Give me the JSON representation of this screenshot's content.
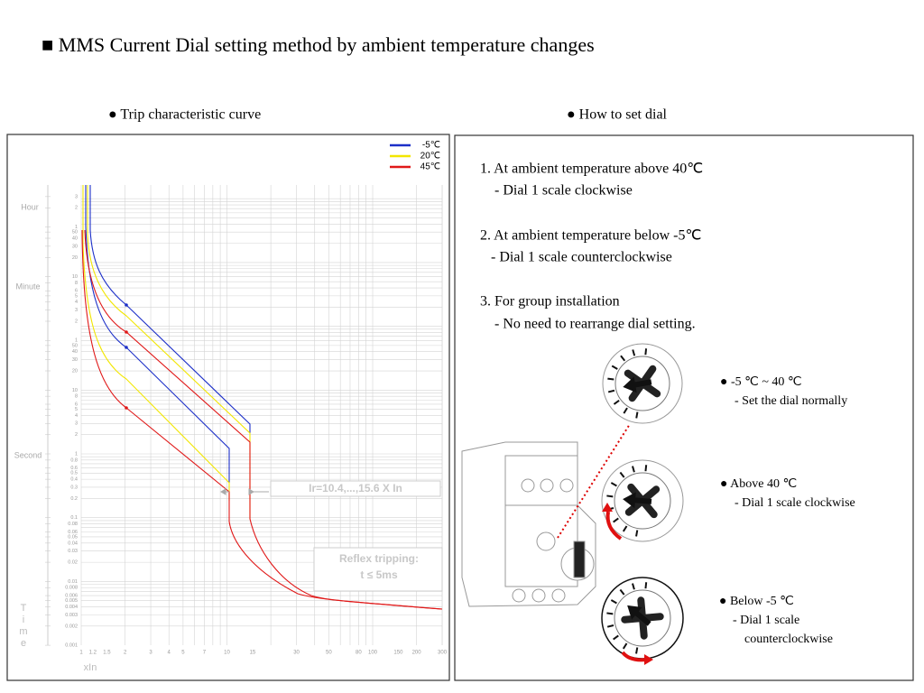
{
  "title": "■ MMS Current Dial setting method by ambient temperature changes",
  "left_panel": {
    "heading": "● Trip characteristic curve",
    "legend": [
      "-5℃",
      "20℃",
      "45℃"
    ],
    "axis_groups": [
      "Hour",
      "Minute",
      "Second"
    ],
    "y_axis_label": "Time",
    "x_axis_label": "xIn",
    "x_ticks": [
      "1",
      "1.2",
      "1.5",
      "2",
      "3",
      "4",
      "5",
      "7",
      "10",
      "15",
      "30",
      "50",
      "80",
      "100",
      "150",
      "200",
      "300"
    ],
    "y_ticks_seconds": [
      "0.001",
      "0.002",
      "0.003",
      "0.004",
      "0.005",
      "0.006",
      "0.008",
      "0.01",
      "0.02",
      "0.03",
      "0.04",
      "0.05",
      "0.06",
      "0.08",
      "0.1",
      "0.2",
      "0.3",
      "0.4",
      "0.5",
      "0.6",
      "0.8",
      "1",
      "2",
      "3",
      "4",
      "5",
      "6",
      "8",
      "10",
      "20",
      "30",
      "40",
      "50"
    ],
    "y_ticks_minutes": [
      "1",
      "2",
      "3",
      "4",
      "5",
      "6",
      "8",
      "10",
      "20",
      "30",
      "40",
      "50"
    ],
    "y_ticks_hours": [
      "1",
      "2",
      "3"
    ],
    "annotations": {
      "setting_range": "Ir=10.4,...,15.6 X In",
      "reflex_line1": "Reflex tripping:",
      "reflex_line2": "t ≤ 5ms"
    }
  },
  "right_panel": {
    "heading": "● How to set dial",
    "steps": [
      {
        "text": "1. At ambient temperature above 40℃",
        "detail": "- Dial 1 scale clockwise"
      },
      {
        "text": "2. At ambient temperature below -5℃",
        "detail": "- Dial 1 scale counterclockwise"
      },
      {
        "text": "3. For group installation",
        "detail": "- No need to rearrange dial setting."
      }
    ],
    "dials": [
      {
        "label": "● -5 ℃ ~ 40 ℃",
        "detail": [
          "- Set the dial normally"
        ]
      },
      {
        "label": "● Above 40 ℃",
        "detail": [
          "- Dial 1 scale clockwise"
        ]
      },
      {
        "label": "● Below -5 ℃",
        "detail": [
          "- Dial 1 scale",
          "counterclockwise"
        ]
      }
    ]
  }
}
